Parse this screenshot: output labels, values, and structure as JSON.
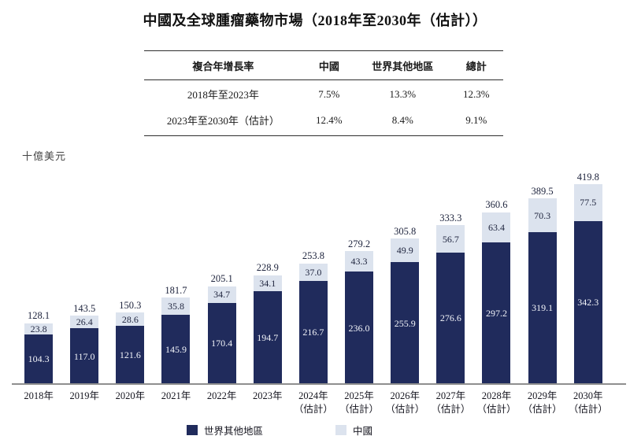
{
  "title": "中國及全球腫瘤藥物市場（2018年至2030年（估計））",
  "cagr_table": {
    "headers": [
      "複合年增長率",
      "中國",
      "世界其他地區",
      "總計"
    ],
    "rows": [
      {
        "period": "2018年至2023年",
        "china": "7.5%",
        "rest_of_world": "13.3%",
        "total": "12.3%"
      },
      {
        "period": "2023年至2030年（估計）",
        "china": "12.4%",
        "rest_of_world": "8.4%",
        "total": "9.1%"
      }
    ]
  },
  "chart_data": {
    "type": "bar",
    "stacked": true,
    "unit_label": "十億美元",
    "categories": [
      "2018年",
      "2019年",
      "2020年",
      "2021年",
      "2022年",
      "2023年",
      "2024年",
      "2025年",
      "2026年",
      "2027年",
      "2028年",
      "2029年",
      "2030年"
    ],
    "category_sublabels": [
      "",
      "",
      "",
      "",
      "",
      "",
      "（估計）",
      "（估計）",
      "（估計）",
      "（估計）",
      "（估計）",
      "（估計）",
      "（估計）"
    ],
    "series": [
      {
        "name": "世界其他地區",
        "color": "#202b5c",
        "values": [
          104.3,
          117.0,
          121.6,
          145.9,
          170.4,
          194.7,
          216.7,
          236.0,
          255.9,
          276.6,
          297.2,
          319.1,
          342.3
        ]
      },
      {
        "name": "中國",
        "color": "#dce3ee",
        "values": [
          23.8,
          26.4,
          28.6,
          35.8,
          34.7,
          34.1,
          37.0,
          43.3,
          49.9,
          56.7,
          63.4,
          70.3,
          77.5
        ]
      }
    ],
    "totals": [
      128.1,
      143.5,
      150.3,
      181.7,
      205.1,
      228.9,
      253.8,
      279.2,
      305.8,
      333.3,
      360.6,
      389.5,
      419.8
    ],
    "legend_position": "bottom",
    "grid": false,
    "ylim": [
      0,
      440
    ]
  },
  "legend": [
    {
      "label": "世界其他地區",
      "color": "#202b5c"
    },
    {
      "label": "中國",
      "color": "#dce3ee"
    }
  ]
}
